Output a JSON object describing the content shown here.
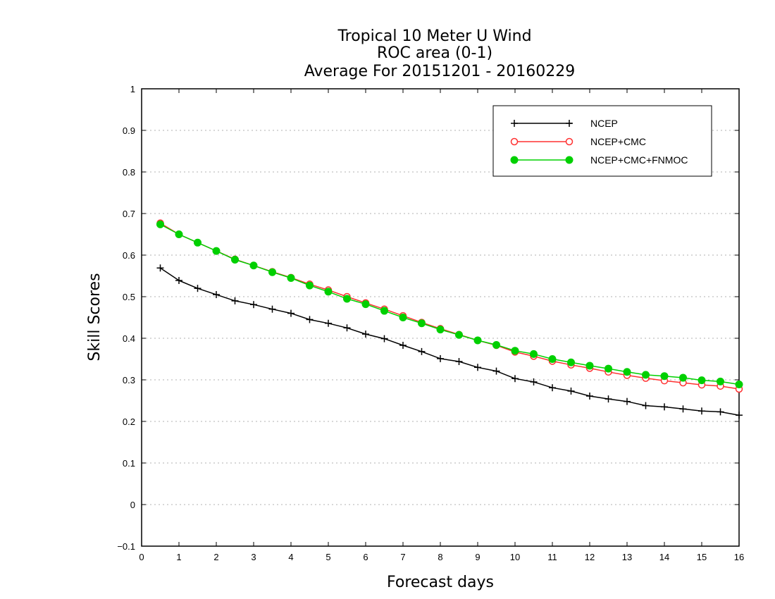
{
  "chart_data": {
    "type": "line",
    "title": [
      "Tropical 10 Meter U Wind",
      "ROC area (0-1)",
      "Average For 20151201 - 20160229"
    ],
    "xlabel": "Forecast days",
    "ylabel": "Skill Scores",
    "xlim": [
      0,
      16
    ],
    "ylim": [
      -0.1,
      1
    ],
    "xticks": [
      0,
      1,
      2,
      3,
      4,
      5,
      6,
      7,
      8,
      9,
      10,
      11,
      12,
      13,
      14,
      15,
      16
    ],
    "yticks": [
      -0.1,
      0,
      0.1,
      0.2,
      0.3,
      0.4,
      0.5,
      0.6,
      0.7,
      0.8,
      0.9,
      1
    ],
    "ytick_labels": [
      "−0.1",
      "0",
      "0.1",
      "0.2",
      "0.3",
      "0.4",
      "0.5",
      "0.6",
      "0.7",
      "0.8",
      "0.9",
      "1"
    ],
    "grid": "horizontal dotted",
    "legend_position": "top-right",
    "x": [
      0.5,
      1,
      1.5,
      2,
      2.5,
      3,
      3.5,
      4,
      4.5,
      5,
      5.5,
      6,
      6.5,
      7,
      7.5,
      8,
      8.5,
      9,
      9.5,
      10,
      10.5,
      11,
      11.5,
      12,
      12.5,
      13,
      13.5,
      14,
      14.5,
      15,
      15.5,
      16
    ],
    "series": [
      {
        "name": "NCEP",
        "color": "#000000",
        "marker": "plus",
        "values": [
          0.569,
          0.539,
          0.52,
          0.505,
          0.49,
          0.481,
          0.47,
          0.46,
          0.445,
          0.436,
          0.425,
          0.41,
          0.399,
          0.383,
          0.368,
          0.351,
          0.344,
          0.33,
          0.321,
          0.303,
          0.295,
          0.281,
          0.273,
          0.261,
          0.254,
          0.248,
          0.238,
          0.235,
          0.23,
          0.225,
          0.223,
          0.215
        ]
      },
      {
        "name": "NCEP+CMC",
        "color": "#ff3030",
        "marker": "open-circle",
        "values": [
          0.677,
          0.65,
          0.63,
          0.61,
          0.59,
          0.575,
          0.56,
          0.546,
          0.53,
          0.516,
          0.5,
          0.485,
          0.47,
          0.454,
          0.438,
          0.423,
          0.409,
          0.395,
          0.383,
          0.367,
          0.357,
          0.345,
          0.336,
          0.328,
          0.319,
          0.311,
          0.304,
          0.298,
          0.293,
          0.288,
          0.285,
          0.278
        ]
      },
      {
        "name": "NCEP+CMC+FNMOC",
        "color": "#00d000",
        "marker": "filled-circle",
        "values": [
          0.674,
          0.65,
          0.63,
          0.61,
          0.589,
          0.575,
          0.559,
          0.545,
          0.527,
          0.512,
          0.495,
          0.482,
          0.466,
          0.45,
          0.436,
          0.421,
          0.408,
          0.395,
          0.384,
          0.37,
          0.362,
          0.35,
          0.342,
          0.334,
          0.327,
          0.319,
          0.312,
          0.309,
          0.305,
          0.299,
          0.296,
          0.289
        ]
      }
    ]
  }
}
